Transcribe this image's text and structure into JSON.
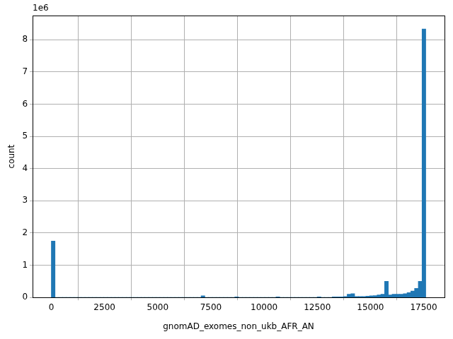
{
  "chart_data": {
    "type": "histogram",
    "x_label": "gnomAD_exomes_non_ukb_AFR_AN",
    "y_label": "count",
    "annotations": [
      "1e6"
    ],
    "bins": [
      0,
      176,
      352,
      528,
      704,
      880,
      1056,
      1232,
      1408,
      1584,
      1760,
      1936,
      2112,
      2288,
      2464,
      2640,
      2816,
      2992,
      3168,
      3344,
      3520,
      3696,
      3872,
      4048,
      4224,
      4400,
      4576,
      4752,
      4928,
      5104,
      5280,
      5456,
      5632,
      5808,
      5984,
      6160,
      6336,
      6512,
      6688,
      6864,
      7040,
      7216,
      7392,
      7568,
      7744,
      7920,
      8096,
      8272,
      8448,
      8624,
      8800,
      8976,
      9152,
      9328,
      9504,
      9680,
      9856,
      10032,
      10208,
      10384,
      10560,
      10736,
      10912,
      11088,
      11264,
      11440,
      11616,
      11792,
      11968,
      12144,
      12320,
      12496,
      12672,
      12848,
      13024,
      13200,
      13376,
      13552,
      13728,
      13904,
      14080,
      14256,
      14432,
      14608,
      14784,
      14960,
      15136,
      15312,
      15488,
      15664,
      15840,
      16016,
      16192,
      16368,
      16544,
      16720,
      16896,
      17072,
      17248,
      17424,
      17600
    ],
    "values": [
      1.75,
      0,
      0,
      0,
      0,
      0,
      0,
      0,
      0,
      0,
      0,
      0,
      0,
      0,
      0,
      0,
      0,
      0,
      0,
      0,
      0,
      0,
      0,
      0,
      0,
      0,
      0,
      0,
      0,
      0,
      0,
      0,
      0,
      0,
      0,
      0,
      0,
      0,
      0,
      0,
      0.05,
      0,
      0,
      0,
      0,
      0,
      0,
      0,
      0,
      0.02,
      0,
      0,
      0,
      0,
      0,
      0,
      0,
      0,
      0,
      0,
      0.02,
      0,
      0,
      0,
      0,
      0,
      0,
      0,
      0,
      0,
      0,
      0.02,
      0,
      0,
      0,
      0.02,
      0.02,
      0.02,
      0.03,
      0.1,
      0.12,
      0.03,
      0.03,
      0.03,
      0.04,
      0.05,
      0.06,
      0.08,
      0.1,
      0.5,
      0.08,
      0.1,
      0.1,
      0.1,
      0.12,
      0.15,
      0.2,
      0.28,
      0.5,
      8.33
    ],
    "color": "#1f77b4",
    "xlim": [
      -880,
      18480
    ],
    "xticks": [
      0,
      2500,
      5000,
      7500,
      10000,
      12500,
      15000,
      17500
    ],
    "ylim": [
      0,
      8.75
    ],
    "yticks": [
      0,
      1,
      2,
      3,
      4,
      5,
      6,
      7,
      8
    ],
    "grid": true
  }
}
